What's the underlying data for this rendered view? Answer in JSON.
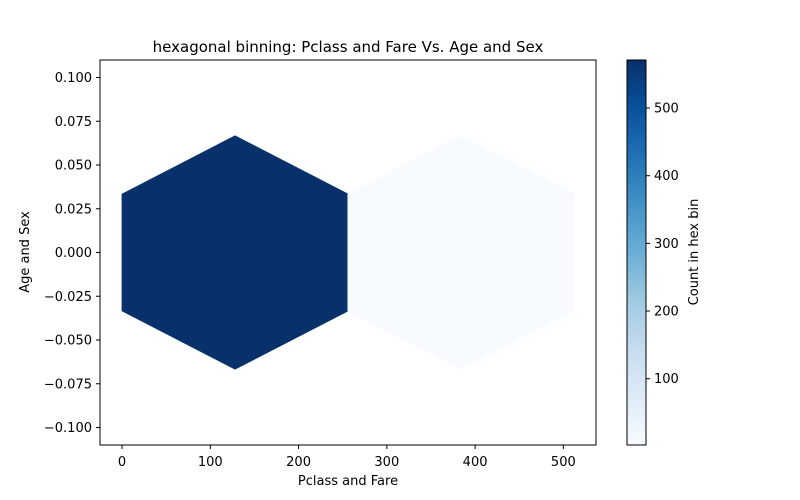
{
  "chart_data": {
    "type": "heatmap",
    "subtype": "hexbin",
    "title": "hexagonal binning: Pclass and Fare Vs. Age and Sex",
    "xlabel": "Pclass and Fare",
    "ylabel": "Age and Sex",
    "xlim": [
      -25,
      537
    ],
    "ylim": [
      -0.11,
      0.11
    ],
    "xticks": [
      0,
      100,
      200,
      300,
      400,
      500
    ],
    "xtick_labels": [
      "0",
      "100",
      "200",
      "300",
      "400",
      "500"
    ],
    "yticks": [
      -0.1,
      -0.075,
      -0.05,
      -0.025,
      0.0,
      0.025,
      0.05,
      0.075,
      0.1
    ],
    "ytick_labels": [
      "−0.100",
      "−0.075",
      "−0.050",
      "−0.025",
      "0.000",
      "0.025",
      "0.050",
      "0.075",
      "0.100"
    ],
    "hex_cell_width": 256,
    "hex_cell_height": 0.1333,
    "bins": [
      {
        "x": 128,
        "y": 0.0,
        "count": 571
      },
      {
        "x": 384,
        "y": 0.0,
        "count": 2
      }
    ],
    "colormap": "Blues",
    "color_min": "#f7fbff",
    "color_max": "#08306b",
    "colorbar": {
      "label": "Count in hex bin",
      "range": [
        2,
        571
      ],
      "ticks": [
        100,
        200,
        300,
        400,
        500
      ],
      "tick_labels": [
        "100",
        "200",
        "300",
        "400",
        "500"
      ]
    },
    "grid": false,
    "legend": "none"
  }
}
